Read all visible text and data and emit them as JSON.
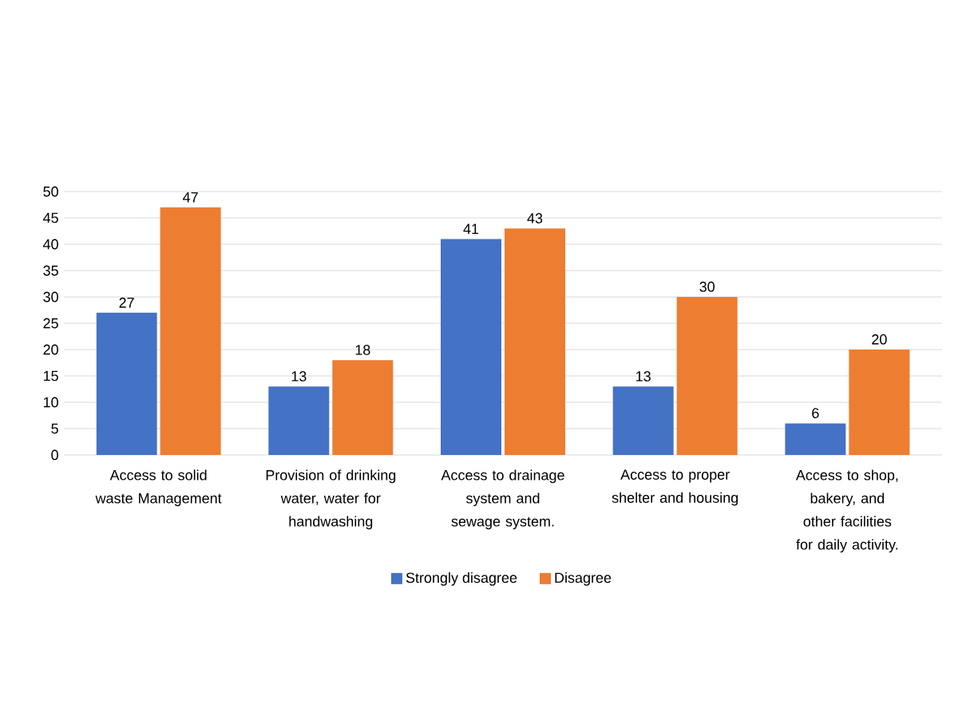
{
  "chart_data": {
    "type": "bar",
    "categories": [
      "Access to solid waste Management",
      "Provision of drinking water, water for handwashing",
      "Access to drainage system and sewage system.",
      "Access to proper shelter and housing",
      "Access to shop, bakery, and other facilities for daily activity."
    ],
    "series": [
      {
        "name": "Strongly disagree",
        "color": "#4472c4",
        "values": [
          27,
          13,
          41,
          13,
          6
        ]
      },
      {
        "name": "Disagree",
        "color": "#ed7d31",
        "values": [
          47,
          18,
          43,
          30,
          20
        ]
      }
    ],
    "ylim": [
      0,
      50
    ],
    "yticks": [
      0,
      5,
      10,
      15,
      20,
      25,
      30,
      35,
      40,
      45,
      50
    ],
    "grid": "y",
    "legend": "bottom",
    "data_labels": true
  }
}
